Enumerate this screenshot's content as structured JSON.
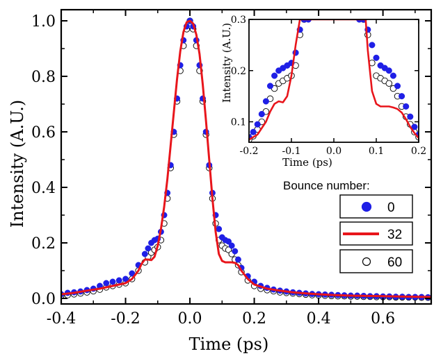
{
  "chart_data": [
    {
      "type": "line",
      "xlabel": "Time (ps)",
      "ylabel": "Intensity (A.U.)",
      "xlim": [
        -0.4,
        0.75
      ],
      "ylim": [
        -0.02,
        1.04
      ],
      "xticks": [
        -0.4,
        -0.2,
        0.0,
        0.2,
        0.4,
        0.6
      ],
      "xtick_labels": [
        "-0.4",
        "-0.2",
        "0.0",
        "0.2",
        "0.4",
        "0.6"
      ],
      "yticks": [
        0.0,
        0.2,
        0.4,
        0.6,
        0.8,
        1.0
      ],
      "ytick_labels": [
        "0.0",
        "0.2",
        "0.4",
        "0.6",
        "0.8",
        "1.0"
      ],
      "legend": {
        "title": "Bounce number:",
        "placement": "right",
        "entries": [
          "0",
          "32",
          "60"
        ]
      },
      "series": [
        {
          "name": "0",
          "style": "filled-circle",
          "color": "#1f1fe6",
          "x": [
            -0.4,
            -0.38,
            -0.36,
            -0.34,
            -0.32,
            -0.3,
            -0.28,
            -0.26,
            -0.24,
            -0.22,
            -0.2,
            -0.18,
            -0.16,
            -0.14,
            -0.13,
            -0.12,
            -0.11,
            -0.1,
            -0.09,
            -0.08,
            -0.07,
            -0.06,
            -0.05,
            -0.04,
            -0.03,
            -0.02,
            -0.01,
            0.0,
            0.01,
            0.02,
            0.03,
            0.04,
            0.05,
            0.06,
            0.07,
            0.08,
            0.09,
            0.1,
            0.11,
            0.12,
            0.13,
            0.14,
            0.15,
            0.16,
            0.18,
            0.2,
            0.22,
            0.24,
            0.26,
            0.28,
            0.3,
            0.32,
            0.34,
            0.36,
            0.38,
            0.4,
            0.42,
            0.44,
            0.46,
            0.48,
            0.5,
            0.52,
            0.54,
            0.56,
            0.58,
            0.6,
            0.62,
            0.64,
            0.66,
            0.68,
            0.7,
            0.72,
            0.74
          ],
          "y": [
            0.015,
            0.02,
            0.022,
            0.025,
            0.03,
            0.035,
            0.045,
            0.055,
            0.06,
            0.065,
            0.07,
            0.09,
            0.12,
            0.16,
            0.18,
            0.2,
            0.21,
            0.215,
            0.24,
            0.3,
            0.38,
            0.48,
            0.6,
            0.72,
            0.84,
            0.93,
            0.98,
            1.0,
            0.98,
            0.93,
            0.84,
            0.72,
            0.6,
            0.48,
            0.38,
            0.3,
            0.25,
            0.22,
            0.21,
            0.205,
            0.19,
            0.17,
            0.14,
            0.11,
            0.08,
            0.06,
            0.045,
            0.038,
            0.032,
            0.028,
            0.025,
            0.022,
            0.02,
            0.018,
            0.016,
            0.015,
            0.014,
            0.013,
            0.012,
            0.011,
            0.01,
            0.01,
            0.009,
            0.008,
            0.008,
            0.007,
            0.007,
            0.006,
            0.006,
            0.005,
            0.005,
            0.005,
            0.004
          ]
        },
        {
          "name": "32",
          "style": "line",
          "color": "#e8151b",
          "x": [
            -0.4,
            -0.36,
            -0.32,
            -0.28,
            -0.24,
            -0.2,
            -0.18,
            -0.16,
            -0.15,
            -0.14,
            -0.13,
            -0.12,
            -0.11,
            -0.1,
            -0.09,
            -0.08,
            -0.07,
            -0.06,
            -0.05,
            -0.04,
            -0.03,
            -0.02,
            -0.01,
            0.0,
            0.01,
            0.02,
            0.03,
            0.04,
            0.05,
            0.06,
            0.07,
            0.08,
            0.09,
            0.1,
            0.11,
            0.12,
            0.13,
            0.14,
            0.15,
            0.16,
            0.18,
            0.2,
            0.24,
            0.28,
            0.32,
            0.36,
            0.4,
            0.45,
            0.5,
            0.55,
            0.6,
            0.65,
            0.7,
            0.75
          ],
          "y": [
            0.015,
            0.02,
            0.028,
            0.035,
            0.045,
            0.055,
            0.07,
            0.1,
            0.125,
            0.14,
            0.14,
            0.138,
            0.15,
            0.19,
            0.25,
            0.33,
            0.43,
            0.55,
            0.67,
            0.79,
            0.89,
            0.96,
            0.995,
            1.0,
            0.99,
            0.95,
            0.88,
            0.77,
            0.64,
            0.5,
            0.36,
            0.24,
            0.16,
            0.135,
            0.13,
            0.13,
            0.13,
            0.128,
            0.12,
            0.1,
            0.07,
            0.05,
            0.035,
            0.028,
            0.022,
            0.018,
            0.015,
            0.012,
            0.01,
            0.009,
            0.008,
            0.007,
            0.006,
            0.005
          ]
        },
        {
          "name": "60",
          "style": "open-circle",
          "color": "#000000",
          "x": [
            -0.4,
            -0.38,
            -0.36,
            -0.34,
            -0.32,
            -0.3,
            -0.28,
            -0.26,
            -0.24,
            -0.22,
            -0.2,
            -0.18,
            -0.16,
            -0.14,
            -0.13,
            -0.12,
            -0.11,
            -0.1,
            -0.09,
            -0.08,
            -0.07,
            -0.06,
            -0.05,
            -0.04,
            -0.03,
            -0.02,
            -0.01,
            0.0,
            0.01,
            0.02,
            0.03,
            0.04,
            0.05,
            0.06,
            0.07,
            0.08,
            0.09,
            0.1,
            0.11,
            0.12,
            0.13,
            0.14,
            0.15,
            0.16,
            0.18,
            0.2,
            0.22,
            0.24,
            0.26,
            0.28,
            0.3,
            0.32,
            0.34,
            0.36,
            0.38,
            0.4,
            0.42,
            0.44,
            0.46,
            0.48,
            0.5,
            0.52,
            0.54,
            0.56,
            0.58,
            0.6,
            0.62,
            0.64,
            0.66,
            0.68,
            0.7,
            0.72,
            0.74
          ],
          "y": [
            0.01,
            0.012,
            0.015,
            0.018,
            0.022,
            0.026,
            0.032,
            0.04,
            0.045,
            0.05,
            0.055,
            0.07,
            0.1,
            0.13,
            0.15,
            0.165,
            0.175,
            0.185,
            0.21,
            0.27,
            0.36,
            0.47,
            0.59,
            0.71,
            0.82,
            0.91,
            0.97,
            1.0,
            0.97,
            0.91,
            0.82,
            0.71,
            0.59,
            0.47,
            0.36,
            0.27,
            0.21,
            0.19,
            0.18,
            0.175,
            0.16,
            0.14,
            0.12,
            0.095,
            0.065,
            0.045,
            0.035,
            0.03,
            0.026,
            0.022,
            0.02,
            0.018,
            0.016,
            0.014,
            0.012,
            0.011,
            0.01,
            0.009,
            0.008,
            0.008,
            0.007,
            0.007,
            0.006,
            0.006,
            0.005,
            0.005,
            0.005,
            0.004,
            0.004,
            0.004,
            0.004,
            0.003,
            0.003
          ]
        }
      ]
    },
    {
      "type": "line",
      "role": "inset",
      "xlabel": "Time (ps)",
      "ylabel": "Intensity (A.U.)",
      "xlim": [
        -0.2,
        0.2
      ],
      "ylim": [
        0.06,
        0.3
      ],
      "xticks": [
        -0.2,
        -0.1,
        0.0,
        0.1,
        0.2
      ],
      "xtick_labels": [
        "-0.2",
        "-0.1",
        "0.0",
        "0.1",
        "0.2"
      ],
      "yticks": [
        0.1,
        0.2,
        0.3
      ],
      "ytick_labels": [
        "0.1",
        "0.2",
        "0.3"
      ],
      "series": [
        {
          "name": "0",
          "style": "filled-circle",
          "color": "#1f1fe6",
          "x": [
            -0.2,
            -0.19,
            -0.18,
            -0.17,
            -0.16,
            -0.15,
            -0.14,
            -0.13,
            -0.12,
            -0.11,
            -0.1,
            -0.09,
            -0.08,
            -0.07,
            -0.06,
            0.06,
            0.07,
            0.08,
            0.09,
            0.1,
            0.11,
            0.12,
            0.13,
            0.14,
            0.15,
            0.16,
            0.17,
            0.18,
            0.19,
            0.2
          ],
          "y": [
            0.07,
            0.08,
            0.095,
            0.115,
            0.14,
            0.17,
            0.19,
            0.2,
            0.205,
            0.21,
            0.215,
            0.235,
            0.28,
            0.3,
            0.3,
            0.3,
            0.3,
            0.28,
            0.25,
            0.225,
            0.21,
            0.205,
            0.2,
            0.19,
            0.17,
            0.15,
            0.13,
            0.11,
            0.09,
            0.075
          ]
        },
        {
          "name": "32",
          "style": "line",
          "color": "#e8151b",
          "x": [
            -0.2,
            -0.18,
            -0.16,
            -0.15,
            -0.14,
            -0.13,
            -0.12,
            -0.11,
            -0.1,
            -0.09,
            -0.08,
            -0.075,
            0.075,
            0.08,
            0.09,
            0.1,
            0.11,
            0.12,
            0.13,
            0.14,
            0.15,
            0.16,
            0.17,
            0.18,
            0.19,
            0.2
          ],
          "y": [
            0.065,
            0.075,
            0.1,
            0.12,
            0.135,
            0.14,
            0.138,
            0.15,
            0.19,
            0.25,
            0.3,
            0.3,
            0.3,
            0.24,
            0.16,
            0.135,
            0.13,
            0.13,
            0.13,
            0.128,
            0.125,
            0.118,
            0.105,
            0.09,
            0.078,
            0.068
          ]
        },
        {
          "name": "60",
          "style": "open-circle",
          "color": "#000000",
          "x": [
            -0.2,
            -0.19,
            -0.18,
            -0.17,
            -0.16,
            -0.15,
            -0.14,
            -0.13,
            -0.12,
            -0.11,
            -0.1,
            -0.09,
            -0.08,
            -0.07,
            0.07,
            0.08,
            0.09,
            0.1,
            0.11,
            0.12,
            0.13,
            0.14,
            0.15,
            0.16,
            0.17,
            0.18,
            0.19,
            0.2
          ],
          "y": [
            0.065,
            0.072,
            0.085,
            0.1,
            0.12,
            0.145,
            0.165,
            0.175,
            0.18,
            0.185,
            0.19,
            0.21,
            0.27,
            0.3,
            0.3,
            0.27,
            0.215,
            0.19,
            0.185,
            0.18,
            0.175,
            0.165,
            0.15,
            0.13,
            0.11,
            0.095,
            0.08,
            0.07
          ]
        }
      ]
    }
  ]
}
